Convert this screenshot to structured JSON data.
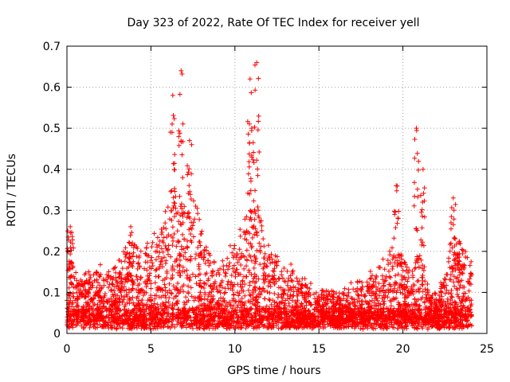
{
  "chart_data": {
    "type": "scatter",
    "title": "Day 323 of 2022, Rate Of TEC Index for receiver yell",
    "xlabel": "GPS time / hours",
    "ylabel": "ROTI / TECUs",
    "xlim": [
      0,
      25
    ],
    "ylim": [
      0,
      0.7
    ],
    "xticks": [
      0,
      5,
      10,
      15,
      20,
      25
    ],
    "yticks": [
      0,
      0.1,
      0.2,
      0.3,
      0.4,
      0.5,
      0.6,
      0.7
    ],
    "xtick_labels": [
      "0",
      "5",
      "10",
      "15",
      "20",
      "25"
    ],
    "ytick_labels": [
      "0",
      "0.1",
      "0.2",
      "0.3",
      "0.4",
      "0.5",
      "0.6",
      "0.7"
    ],
    "grid": true,
    "marker": "+",
    "color": "#ff0000",
    "peaks": [
      {
        "x": 0.2,
        "y": 0.26
      },
      {
        "x": 3.8,
        "y": 0.26
      },
      {
        "x": 6.3,
        "y": 0.58
      },
      {
        "x": 6.8,
        "y": 0.64
      },
      {
        "x": 7.3,
        "y": 0.47
      },
      {
        "x": 10.9,
        "y": 0.62
      },
      {
        "x": 11.3,
        "y": 0.66
      },
      {
        "x": 11.0,
        "y": 0.5
      },
      {
        "x": 19.6,
        "y": 0.36
      },
      {
        "x": 20.8,
        "y": 0.5
      },
      {
        "x": 21.2,
        "y": 0.4
      },
      {
        "x": 23.0,
        "y": 0.33
      }
    ]
  }
}
